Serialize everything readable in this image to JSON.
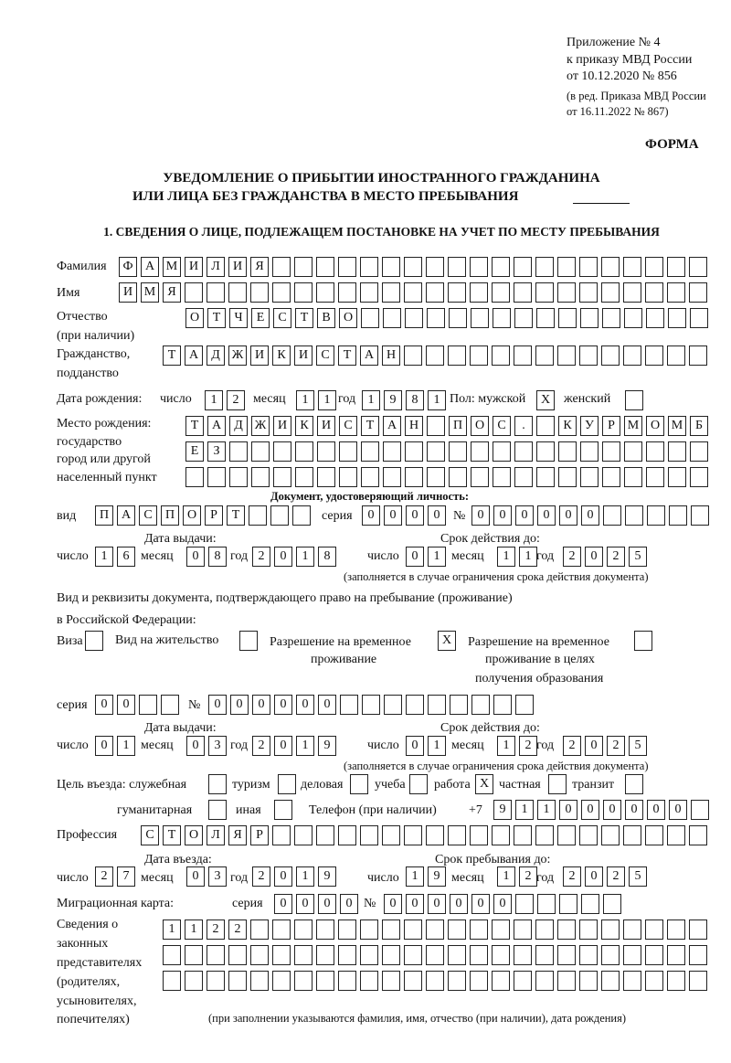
{
  "header": {
    "appendix": [
      "Приложение № 4",
      "к приказу МВД России",
      "от 10.12.2020 № 856"
    ],
    "edition": [
      "(в ред. Приказа МВД России",
      "от 16.11.2022 № 867)"
    ],
    "form_label": "ФОРМА",
    "title": [
      "УВЕДОМЛЕНИЕ О ПРИБЫТИИ ИНОСТРАННОГО ГРАЖДАНИНА",
      "ИЛИ ЛИЦА БЕЗ ГРАЖДАНСТВА В МЕСТО ПРЕБЫВАНИЯ"
    ],
    "section1": "1. СВЕДЕНИЯ О ЛИЦЕ, ПОДЛЕЖАЩЕМ ПОСТАНОВКЕ НА УЧЕТ ПО МЕСТУ ПРЕБЫВАНИЯ"
  },
  "labels": {
    "surname": "Фамилия",
    "name": "Имя",
    "patronymic": "Отчество",
    "patronymic_note": "(при наличии)",
    "citizenship": "Гражданство,",
    "citizenship2": "подданство",
    "birth_date": "Дата рождения:",
    "day": "число",
    "month": "месяц",
    "year": "год",
    "sex_male": "Пол: мужской",
    "sex_female": "женский",
    "birthplace": [
      "Место рождения:",
      "государство",
      "город или другой",
      "населенный пункт"
    ],
    "id_doc_title": "Документ, удостоверяющий личность:",
    "type": "вид",
    "series": "серия",
    "number": "№",
    "issue_date": "Дата выдачи:",
    "valid_until": "Срок действия до:",
    "validity_note": "(заполняется в случае ограничения срока действия документа)",
    "residence_doc_title": [
      "Вид и реквизиты документа, подтверждающего право на пребывание (проживание)",
      "в Российской Федерации:"
    ],
    "visa": "Виза",
    "residence_permit": "Вид на жительство",
    "temp_residence": [
      "Разрешение на временное",
      "проживание"
    ],
    "temp_residence_edu": [
      "Разрешение на временное",
      "проживание в целях",
      "получения образования"
    ],
    "purpose": "Цель въезда: служебная",
    "tourism": "туризм",
    "business": "деловая",
    "study": "учеба",
    "work": "работа",
    "private": "частная",
    "transit": "транзит",
    "humanitarian": "гуманитарная",
    "other": "иная",
    "phone": "Телефон (при наличии)",
    "phone_prefix": "+7",
    "profession": "Профессия",
    "entry_date": "Дата въезда:",
    "stay_until": "Срок пребывания до:",
    "migration_card": "Миграционная карта:",
    "representatives": [
      "Сведения о",
      "законных",
      "представителях",
      "(родителях,",
      "усыновителях,",
      "попечителях)"
    ],
    "representatives_note": "(при заполнении указываются фамилия, имя, отчество (при наличии), дата рождения)"
  },
  "fields": {
    "surname": "ФАМИЛИЯ",
    "name": "ИМЯ",
    "patronymic": "ОТЧЕСТВО",
    "citizenship": "ТАДЖИКИСТАН",
    "birth_date": {
      "day": "12",
      "month": "11",
      "year": "1981"
    },
    "sex": {
      "male": "X",
      "female": ""
    },
    "birthplace": [
      "ТАДЖИКИСТАН ПОС. КУРМОМБ",
      "ЕЗ",
      ""
    ],
    "id_doc": {
      "type": "ПАСПОРТ",
      "series": "0000",
      "number": "000000",
      "issue": {
        "day": "16",
        "month": "08",
        "year": "2018"
      },
      "valid": {
        "day": "01",
        "month": "11",
        "year": "2025"
      }
    },
    "residence_doc": {
      "visa": "",
      "residence_permit": "",
      "temp_residence": "X",
      "temp_residence_edu": "",
      "series": "00",
      "number": "000000",
      "issue": {
        "day": "01",
        "month": "03",
        "year": "2019"
      },
      "valid": {
        "day": "01",
        "month": "12",
        "year": "2025"
      }
    },
    "purpose": {
      "official": "",
      "tourism": "",
      "business": "",
      "study": "",
      "work": "X",
      "private": "",
      "transit": "",
      "humanitarian": "",
      "other": ""
    },
    "phone": "911000000",
    "profession": "СТОЛЯР",
    "entry_date": {
      "day": "27",
      "month": "03",
      "year": "2019"
    },
    "stay_until": {
      "day": "19",
      "month": "12",
      "year": "2025"
    },
    "migration_card": {
      "series": "0000",
      "number": "000000"
    },
    "representatives": [
      "1122",
      "",
      ""
    ]
  }
}
